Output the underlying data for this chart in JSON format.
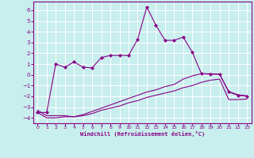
{
  "xlabel": "Windchill (Refroidissement éolien,°C)",
  "background_color": "#c8eeed",
  "grid_color": "#ffffff",
  "line_color": "#880088",
  "xlim": [
    -0.5,
    23.5
  ],
  "ylim": [
    -4.5,
    6.8
  ],
  "yticks": [
    -4,
    -3,
    -2,
    -1,
    0,
    1,
    2,
    3,
    4,
    5,
    6
  ],
  "xticks": [
    0,
    1,
    2,
    3,
    4,
    5,
    6,
    7,
    8,
    9,
    10,
    11,
    12,
    13,
    14,
    15,
    16,
    17,
    18,
    19,
    20,
    21,
    22,
    23
  ],
  "series1_x": [
    0,
    1,
    2,
    3,
    4,
    5,
    6,
    7,
    8,
    9,
    10,
    11,
    12,
    13,
    14,
    15,
    16,
    17,
    18,
    19,
    20,
    21,
    22,
    23
  ],
  "series1_y": [
    -3.5,
    -3.5,
    1.0,
    0.7,
    1.2,
    0.7,
    0.65,
    1.6,
    1.8,
    1.8,
    1.8,
    3.3,
    6.3,
    4.6,
    3.2,
    3.2,
    3.5,
    2.1,
    0.1,
    0.05,
    0.05,
    -1.6,
    -1.9,
    -2.0
  ],
  "series2_x": [
    0,
    1,
    2,
    3,
    4,
    5,
    6,
    7,
    8,
    9,
    10,
    11,
    12,
    13,
    14,
    15,
    16,
    17,
    18,
    19,
    20,
    21,
    22,
    23
  ],
  "series2_y": [
    -3.3,
    -3.8,
    -3.8,
    -3.8,
    -3.9,
    -3.7,
    -3.4,
    -3.1,
    -2.8,
    -2.5,
    -2.2,
    -1.9,
    -1.6,
    -1.4,
    -1.1,
    -0.9,
    -0.4,
    -0.1,
    0.1,
    0.1,
    0.05,
    -1.55,
    -1.85,
    -1.95
  ],
  "series3_x": [
    0,
    1,
    2,
    3,
    4,
    5,
    6,
    7,
    8,
    9,
    10,
    11,
    12,
    13,
    14,
    15,
    16,
    17,
    18,
    19,
    20,
    21,
    22,
    23
  ],
  "series3_y": [
    -3.5,
    -4.0,
    -4.0,
    -3.9,
    -3.9,
    -3.8,
    -3.6,
    -3.3,
    -3.1,
    -2.9,
    -2.6,
    -2.4,
    -2.1,
    -1.9,
    -1.7,
    -1.5,
    -1.2,
    -1.0,
    -0.7,
    -0.5,
    -0.4,
    -2.3,
    -2.3,
    -2.25
  ]
}
